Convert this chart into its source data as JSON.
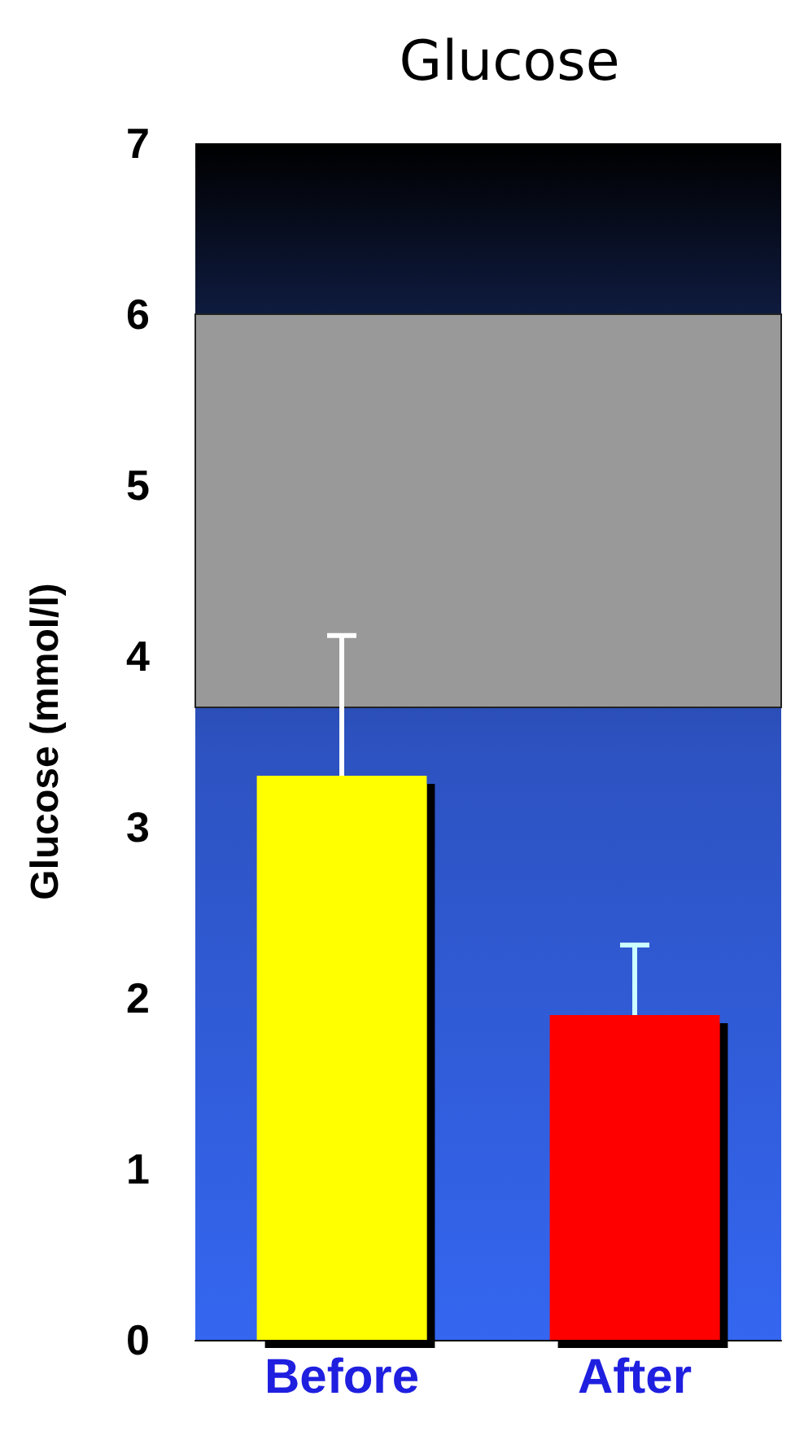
{
  "chart_data": {
    "type": "bar",
    "title": "Glucose",
    "ylabel": "Glucose (mmol/l)",
    "categories": [
      "Before",
      "After"
    ],
    "values": [
      3.3,
      1.9
    ],
    "colors": [
      "#ffff00",
      "#ff0000"
    ],
    "errors": [
      [
        3.3,
        4.12
      ],
      [
        1.9,
        2.31
      ]
    ],
    "ylim": [
      0,
      7
    ],
    "yticks": [
      0,
      1,
      2,
      3,
      4,
      5,
      6,
      7
    ],
    "bands": [
      {
        "axis": "y",
        "from": 3.7,
        "to": 6.0,
        "color": "#999999"
      }
    ],
    "grid": false
  }
}
